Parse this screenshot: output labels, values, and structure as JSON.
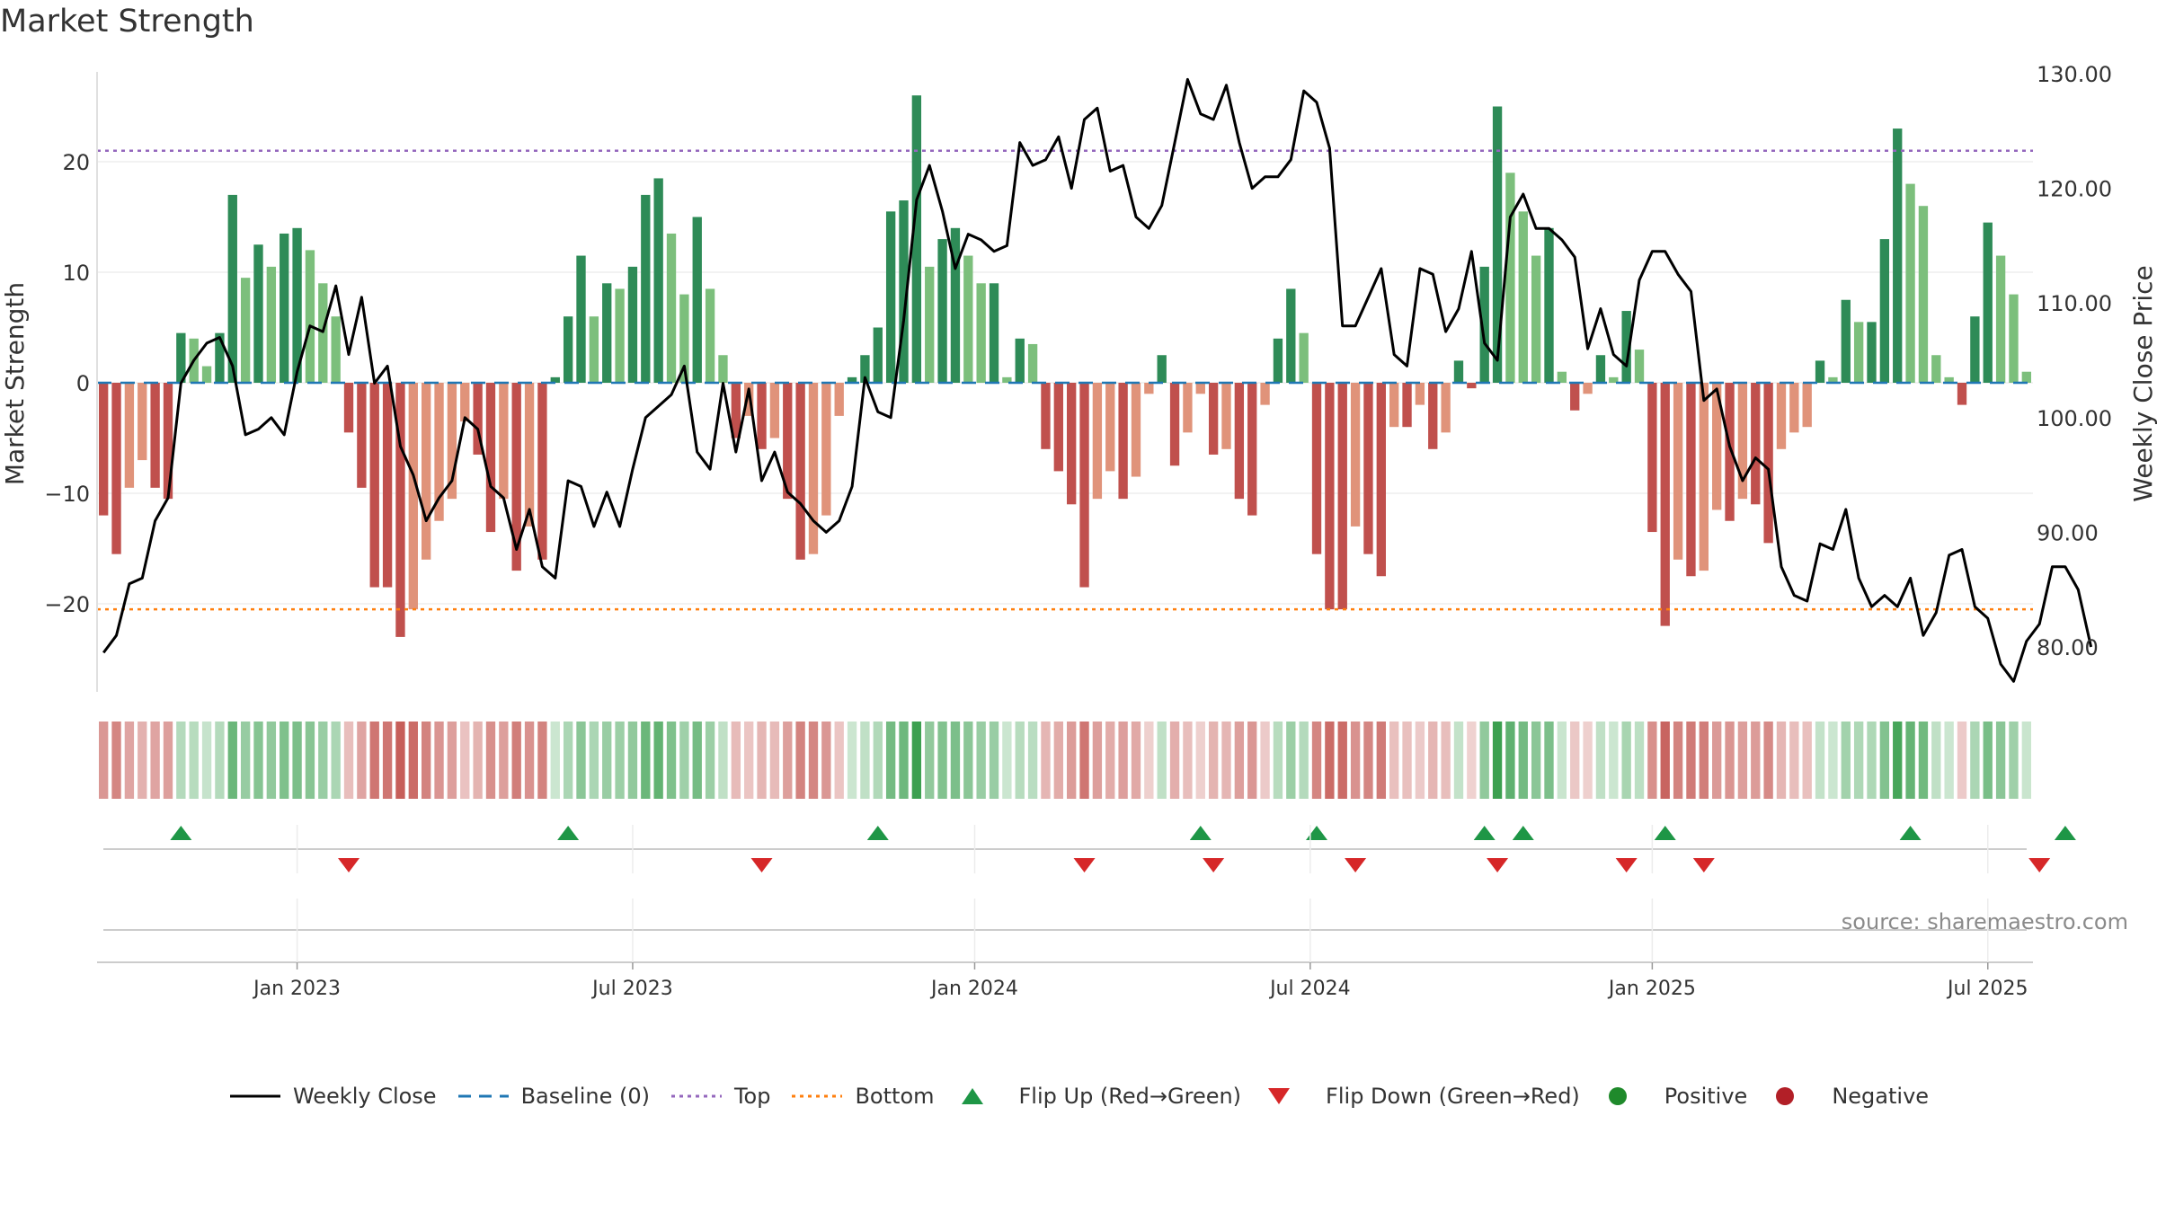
{
  "chart_data": {
    "type": "bar",
    "title": "Market Strength",
    "ylabel_left": "Market Strength",
    "ylabel_right": "Weekly Close Price",
    "ylim_left": [
      -28,
      28
    ],
    "ylim_right": [
      75,
      130
    ],
    "yticks_left": [
      20,
      10,
      0,
      -10,
      -20
    ],
    "yticks_left_labels": [
      "20",
      "10",
      "0",
      "−10",
      "−20"
    ],
    "yticks_right": [
      130,
      120,
      110,
      100,
      90,
      80
    ],
    "yticks_right_labels": [
      "130.00",
      "120.00",
      "110.00",
      "100.00",
      "90.00",
      "80.00"
    ],
    "top_level": 21,
    "bottom_level": -20.5,
    "x_ticks": [
      "Jan 2023",
      "Jul 2023",
      "Jan 2024",
      "Jul 2024",
      "Jan 2025",
      "Jul 2025"
    ],
    "x_tick_week_index": [
      15,
      41,
      67.5,
      93.5,
      120,
      146
    ],
    "strength": [
      -12,
      -15.5,
      -9.5,
      -7,
      -9.5,
      -10.5,
      4.5,
      4,
      1.5,
      4.5,
      17,
      9.5,
      12.5,
      10.5,
      13.5,
      14,
      12,
      9,
      6,
      -4.5,
      -9.5,
      -18.5,
      -18.5,
      -23,
      -20.5,
      -16,
      -12.5,
      -10.5,
      -3.5,
      -6.5,
      -13.5,
      -10.5,
      -17,
      -13,
      -16,
      0.5,
      6,
      11.5,
      6,
      9,
      8.5,
      10.5,
      17,
      18.5,
      13.5,
      8,
      15,
      8.5,
      2.5,
      -5,
      -3,
      -6,
      -5,
      -10.5,
      -16,
      -15.5,
      -12,
      -3,
      0.5,
      2.5,
      5,
      15.5,
      16.5,
      26,
      10.5,
      13,
      14,
      11.5,
      9,
      9,
      0.5,
      4,
      3.5,
      -6,
      -8,
      -11,
      -18.5,
      -10.5,
      -8,
      -10.5,
      -8.5,
      -1,
      2.5,
      -7.5,
      -4.5,
      -1,
      -6.5,
      -6,
      -10.5,
      -12,
      -2,
      4,
      8.5,
      4.5,
      -15.5,
      -20.5,
      -20.5,
      -13,
      -15.5,
      -17.5,
      -4,
      -4,
      -2,
      -6,
      -4.5,
      2,
      -0.5,
      10.5,
      25,
      19,
      15.5,
      11.5,
      14,
      1,
      -2.5,
      -1,
      2.5,
      0.5,
      6.5,
      3,
      -13.5,
      -22,
      -16,
      -17.5,
      -17,
      -11.5,
      -12.5,
      -10.5,
      -11,
      -14.5,
      -6,
      -4.5,
      -4,
      2,
      0.5,
      7.5,
      5.5,
      5.5,
      13,
      23,
      18,
      16,
      2.5,
      0.5,
      -2,
      6,
      14.5,
      11.5,
      8,
      1
    ],
    "weekly_close": [
      79.5,
      81,
      85.5,
      86,
      91,
      93,
      103,
      105,
      106.5,
      107,
      104.5,
      98.5,
      99,
      100,
      98.5,
      104,
      108,
      107.5,
      111.5,
      105.5,
      110.5,
      103,
      104.5,
      97.5,
      95,
      91,
      93,
      94.5,
      100,
      99,
      94,
      93,
      88.5,
      92,
      87,
      86,
      94.5,
      94,
      90.5,
      93.5,
      90.5,
      95.5,
      100,
      101,
      102,
      104.5,
      97,
      95.5,
      103,
      97,
      102.5,
      94.5,
      97,
      93.5,
      92.5,
      91,
      90,
      91,
      94,
      103.5,
      100.5,
      100,
      108.5,
      119,
      122,
      118,
      113,
      116,
      115.5,
      114.5,
      115,
      124,
      122,
      122.5,
      124.5,
      120,
      126,
      127,
      121.5,
      122,
      117.5,
      116.5,
      118.5,
      124,
      129.5,
      126.5,
      126,
      129,
      124,
      120,
      121,
      121,
      122.5,
      128.5,
      127.5,
      123.5,
      108,
      108,
      110.5,
      113,
      105.5,
      104.5,
      113,
      112.5,
      107.5,
      109.5,
      114.5,
      106.5,
      105,
      117.5,
      119.5,
      116.5,
      116.5,
      115.5,
      114,
      106,
      109.5,
      105.5,
      104.5,
      112,
      114.5,
      114.5,
      112.5,
      111,
      101.5,
      102.5,
      97.5,
      94.5,
      96.5,
      95.5,
      87,
      84.5,
      84,
      89,
      88.5,
      92,
      86,
      83.5,
      84.5,
      83.5,
      86,
      81,
      83,
      88,
      88.5,
      83.5,
      82.5,
      78.5,
      77,
      80.5,
      82,
      87,
      87,
      85,
      80
    ],
    "flips_up_week_index": [
      6,
      36,
      60,
      85,
      94,
      107,
      110,
      121,
      140,
      152
    ],
    "flips_down_week_index": [
      19,
      51,
      76,
      86,
      97,
      108,
      118,
      124,
      150
    ]
  },
  "colors": {
    "green_dark": "#2e8b57",
    "green_light": "#7cbf7c",
    "red_dark": "#c0504d",
    "red_light": "#e0937a",
    "line": "#000000",
    "baseline": "#1f77b4",
    "top": "#9467bd",
    "bottom": "#ff7f0e",
    "flip_up": "#1e9646",
    "flip_down": "#d62728",
    "positive": "#1f8a2b",
    "negative": "#b21f27",
    "grid": "#e6e6e6"
  },
  "source": "source: sharemaestro.com",
  "legend": {
    "weekly_close": "Weekly Close",
    "baseline": "Baseline (0)",
    "top": "Top",
    "bottom": "Bottom",
    "flip_up": "Flip Up (Red→Green)",
    "flip_down": "Flip Down (Green→Red)",
    "positive": "Positive",
    "negative": "Negative"
  }
}
